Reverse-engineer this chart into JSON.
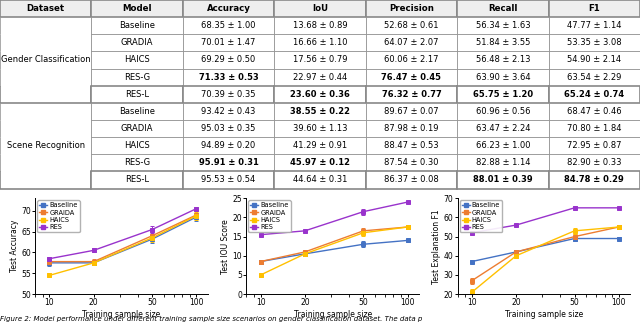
{
  "table": {
    "col_headers": [
      "Dataset",
      "Model",
      "Accuracy",
      "IoU",
      "Precision",
      "Recall",
      "F1"
    ],
    "rows": [
      [
        "Gender Classification",
        "Baseline",
        "68.35 ± 1.00",
        "13.68 ± 0.89",
        "52.68 ± 0.61",
        "56.34 ± 1.63",
        "47.77 ± 1.14"
      ],
      [
        "Gender Classification",
        "GRADIA",
        "70.01 ± 1.47",
        "16.66 ± 1.10",
        "64.07 ± 2.07",
        "51.84 ± 3.55",
        "53.35 ± 3.08"
      ],
      [
        "Gender Classification",
        "HAICS",
        "69.29 ± 0.50",
        "17.56 ± 0.79",
        "60.06 ± 2.17",
        "56.48 ± 2.13",
        "54.90 ± 2.14"
      ],
      [
        "Gender Classification",
        "RES-G",
        "71.33 ± 0.53",
        "22.97 ± 0.44",
        "76.47 ± 0.45",
        "63.90 ± 3.64",
        "63.54 ± 2.29"
      ],
      [
        "Gender Classification",
        "RES-L",
        "70.39 ± 0.35",
        "23.60 ± 0.36",
        "76.32 ± 0.77",
        "65.75 ± 1.20",
        "65.24 ± 0.74"
      ],
      [
        "Scene Recognition",
        "Baseline",
        "93.42 ± 0.43",
        "38.55 ± 0.22",
        "89.67 ± 0.07",
        "60.96 ± 0.56",
        "68.47 ± 0.46"
      ],
      [
        "Scene Recognition",
        "GRADIA",
        "95.03 ± 0.35",
        "39.60 ± 1.13",
        "87.98 ± 0.19",
        "63.47 ± 2.24",
        "70.80 ± 1.84"
      ],
      [
        "Scene Recognition",
        "HAICS",
        "94.89 ± 0.20",
        "41.29 ± 0.91",
        "88.47 ± 0.53",
        "66.23 ± 1.00",
        "72.95 ± 0.87"
      ],
      [
        "Scene Recognition",
        "RES-G",
        "95.91 ± 0.31",
        "45.97 ± 0.12",
        "87.54 ± 0.30",
        "82.88 ± 1.14",
        "82.90 ± 0.33"
      ],
      [
        "Scene Recognition",
        "RES-L",
        "95.53 ± 0.54",
        "44.64 ± 0.31",
        "86.37 ± 0.08",
        "88.01 ± 0.39",
        "84.78 ± 0.29"
      ]
    ],
    "bold": {
      "3_2": true,
      "3_4": true,
      "4_3": true,
      "4_4": true,
      "4_5": true,
      "4_6": true,
      "5_3": true,
      "8_2": true,
      "8_3": true,
      "9_5": true,
      "9_6": true
    },
    "underline": {
      "3_3": true,
      "3_5": true,
      "3_6": true,
      "4_2": true,
      "4_3": true,
      "4_4": true,
      "4_5": true,
      "4_6": true,
      "7_4": true,
      "8_4": true,
      "8_5": true,
      "8_6": true,
      "9_2": true,
      "9_3": true,
      "9_5": true,
      "9_6": true
    },
    "dataset_merge": {
      "Gender Classification": [
        1,
        5
      ],
      "Scene Recognition": [
        6,
        10
      ]
    }
  },
  "plots": {
    "x": [
      10,
      20,
      50,
      100
    ],
    "accuracy": {
      "Baseline": [
        57.5,
        57.5,
        63.2,
        68.5
      ],
      "GRAIDA": [
        57.8,
        57.8,
        64.0,
        69.0
      ],
      "HAICS": [
        54.5,
        57.5,
        63.5,
        68.8
      ],
      "RES": [
        58.5,
        60.5,
        65.5,
        70.5
      ]
    },
    "accuracy_err": {
      "Baseline": [
        0.7,
        0.5,
        1.0,
        1.0
      ],
      "GRAIDA": [
        0.8,
        0.7,
        1.0,
        1.0
      ],
      "HAICS": [
        0.5,
        0.6,
        1.0,
        1.0
      ],
      "RES": [
        0.5,
        0.5,
        0.8,
        0.5
      ]
    },
    "iou": {
      "Baseline": [
        8.5,
        10.5,
        13.0,
        14.0
      ],
      "GRAIDA": [
        8.5,
        11.0,
        16.5,
        17.5
      ],
      "HAICS": [
        5.0,
        10.5,
        16.0,
        17.5
      ],
      "RES": [
        15.5,
        16.5,
        21.5,
        24.0
      ]
    },
    "iou_err": {
      "Baseline": [
        0.5,
        0.5,
        0.8,
        0.5
      ],
      "GRAIDA": [
        0.5,
        0.5,
        0.8,
        0.5
      ],
      "HAICS": [
        0.5,
        0.5,
        0.8,
        0.5
      ],
      "RES": [
        0.3,
        0.3,
        0.8,
        0.3
      ]
    },
    "f1": {
      "Baseline": [
        37.0,
        42.0,
        49.0,
        49.0
      ],
      "GRAIDA": [
        27.0,
        42.0,
        50.0,
        55.0
      ],
      "HAICS": [
        21.0,
        40.0,
        53.0,
        55.0
      ],
      "RES": [
        52.0,
        56.0,
        65.0,
        65.0
      ]
    },
    "f1_err": {
      "Baseline": [
        1.0,
        1.0,
        1.5,
        1.0
      ],
      "GRAIDA": [
        1.5,
        1.0,
        1.5,
        1.0
      ],
      "HAICS": [
        1.5,
        1.0,
        1.5,
        1.0
      ],
      "RES": [
        0.5,
        0.5,
        0.8,
        0.5
      ]
    },
    "ylim_acc": [
      50,
      73
    ],
    "ylim_iou": [
      0,
      25
    ],
    "ylim_f1": [
      20,
      70
    ],
    "yticks_acc": [
      50,
      55,
      60,
      65,
      70
    ],
    "yticks_iou": [
      0,
      5,
      10,
      15,
      20,
      25
    ],
    "yticks_f1": [
      20,
      30,
      40,
      50,
      60,
      70
    ],
    "colors": {
      "Baseline": "#4472c4",
      "GRAIDA": "#ed7d31",
      "HAICS": "#ffc000",
      "RES": "#9933cc"
    }
  },
  "caption": "igure 2: Model performance under different training sample size scenarios on gender classification dataset. The data p"
}
